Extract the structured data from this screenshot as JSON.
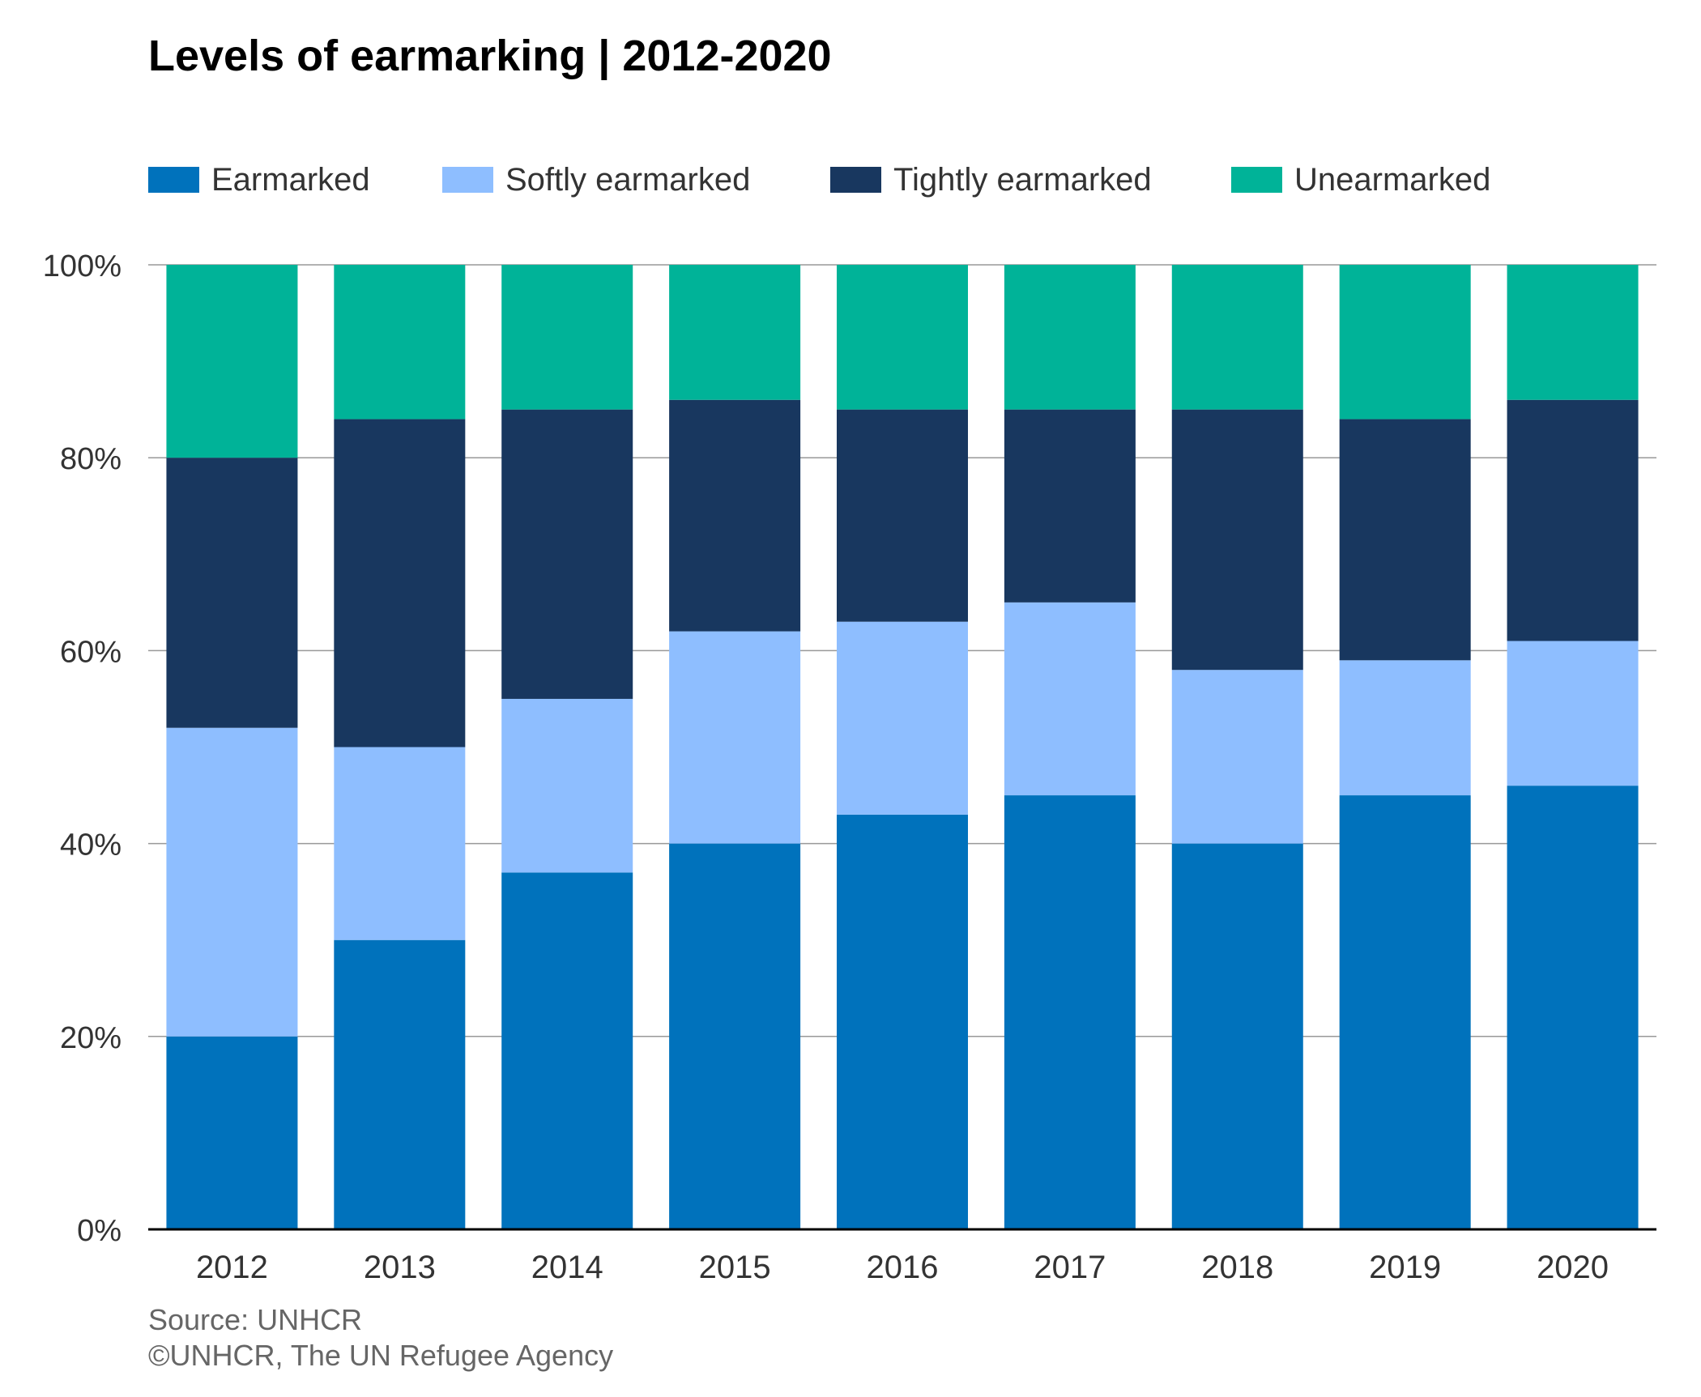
{
  "chart_data": {
    "type": "bar",
    "stacked": true,
    "title": "Levels of earmarking | 2012-2020",
    "categories": [
      "2012",
      "2013",
      "2014",
      "2015",
      "2016",
      "2017",
      "2018",
      "2019",
      "2020"
    ],
    "series": [
      {
        "name": "Earmarked",
        "color": "#0072bc",
        "values": [
          20,
          30,
          37,
          40,
          43,
          45,
          40,
          45,
          46
        ]
      },
      {
        "name": "Softly earmarked",
        "color": "#8ebeff",
        "values": [
          32,
          20,
          18,
          22,
          20,
          20,
          18,
          14,
          15
        ]
      },
      {
        "name": "Tightly earmarked",
        "color": "#18375f",
        "values": [
          28,
          34,
          30,
          24,
          22,
          20,
          27,
          25,
          25
        ]
      },
      {
        "name": "Unearmarked",
        "color": "#00b398",
        "values": [
          20,
          16,
          15,
          14,
          15,
          15,
          15,
          16,
          14
        ]
      }
    ],
    "ylim": [
      0,
      100
    ],
    "yticks": [
      0,
      20,
      40,
      60,
      80,
      100
    ],
    "ytick_labels": [
      "0%",
      "20%",
      "40%",
      "60%",
      "80%",
      "100%"
    ],
    "grid": true,
    "legend": "top-left",
    "xlabel": "",
    "ylabel": ""
  },
  "footer": {
    "source": "Source: UNHCR",
    "credit": "©UNHCR, The UN Refugee Agency"
  }
}
